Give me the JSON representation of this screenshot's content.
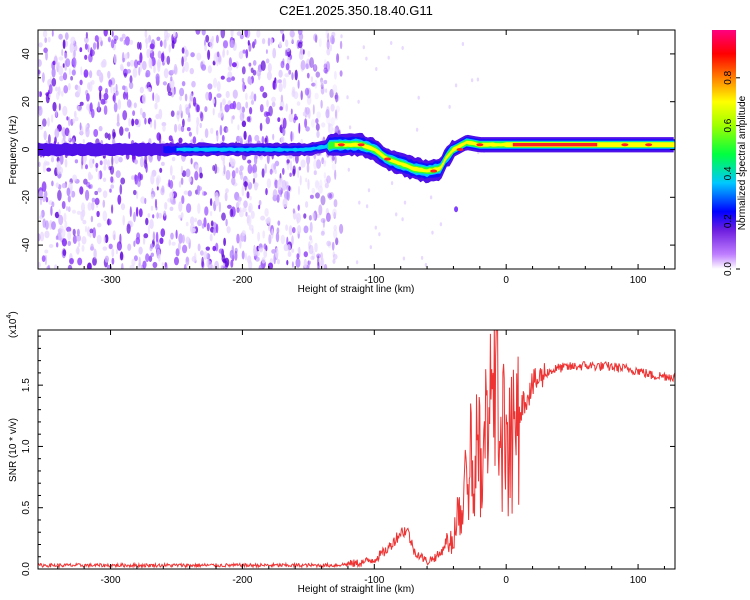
{
  "chart_data": [
    {
      "type": "heatmap",
      "title": "C2E1.2025.350.18.40.G11",
      "xlabel": "Height of straight line (km)",
      "ylabel": "Frequency (Hz)",
      "xlim": [
        -355,
        128
      ],
      "ylim": [
        -50,
        50
      ],
      "xticks": [
        -300,
        -200,
        -100,
        0,
        100
      ],
      "yticks": [
        -40,
        -20,
        0,
        20,
        40
      ],
      "colorbar": {
        "label": "Normalized spectral amplitude",
        "range": [
          0.0,
          1.0
        ],
        "ticks": [
          "0.0",
          "0.2",
          "0.4",
          "0.6",
          "0.8"
        ],
        "colors": [
          "#ffffff",
          "#a020f0",
          "#0000ff",
          "#00c8ff",
          "#00ff00",
          "#ffff00",
          "#ff8000",
          "#ff0000",
          "#ff0080"
        ]
      },
      "ridge_center_hz": [
        [
          -355,
          0
        ],
        [
          -300,
          0
        ],
        [
          -250,
          0
        ],
        [
          -200,
          0
        ],
        [
          -150,
          0
        ],
        [
          -130,
          2
        ],
        [
          -110,
          2
        ],
        [
          -100,
          0
        ],
        [
          -90,
          -4
        ],
        [
          -80,
          -6
        ],
        [
          -70,
          -8
        ],
        [
          -60,
          -9
        ],
        [
          -50,
          -8
        ],
        [
          -45,
          -3
        ],
        [
          -40,
          0
        ],
        [
          -30,
          3
        ],
        [
          -20,
          2
        ],
        [
          -10,
          2
        ],
        [
          0,
          2
        ],
        [
          50,
          2
        ],
        [
          100,
          2
        ],
        [
          128,
          2
        ]
      ]
    },
    {
      "type": "line",
      "title": "",
      "xlabel": "Height of straight line (km)",
      "ylabel": "SNR (10 * v/v)",
      "scale_label": "(x10",
      "scale_exp": "4",
      "scale_close": ")",
      "xlim": [
        -355,
        128
      ],
      "ylim": [
        0,
        1.95
      ],
      "xticks": [
        -300,
        -200,
        -100,
        0,
        100
      ],
      "yticks": [
        "0.0",
        "0.5",
        "1.0",
        "1.5"
      ],
      "series": [
        {
          "name": "SNR",
          "color": "#ee3333",
          "envelope": [
            [
              -355,
              0.03
            ],
            [
              -200,
              0.03
            ],
            [
              -130,
              0.03
            ],
            [
              -110,
              0.05
            ],
            [
              -100,
              0.08
            ],
            [
              -90,
              0.16
            ],
            [
              -80,
              0.3
            ],
            [
              -75,
              0.32
            ],
            [
              -70,
              0.15
            ],
            [
              -60,
              0.06
            ],
            [
              -50,
              0.12
            ],
            [
              -40,
              0.35
            ],
            [
              -35,
              0.65
            ],
            [
              -30,
              0.95
            ],
            [
              -25,
              1.15
            ],
            [
              -20,
              1.1
            ],
            [
              -15,
              1.3
            ],
            [
              -10,
              1.55
            ],
            [
              0,
              1.2
            ],
            [
              10,
              1.3
            ],
            [
              20,
              1.5
            ],
            [
              30,
              1.6
            ],
            [
              40,
              1.64
            ],
            [
              60,
              1.66
            ],
            [
              80,
              1.65
            ],
            [
              100,
              1.62
            ],
            [
              110,
              1.58
            ],
            [
              128,
              1.57
            ]
          ]
        }
      ]
    }
  ]
}
